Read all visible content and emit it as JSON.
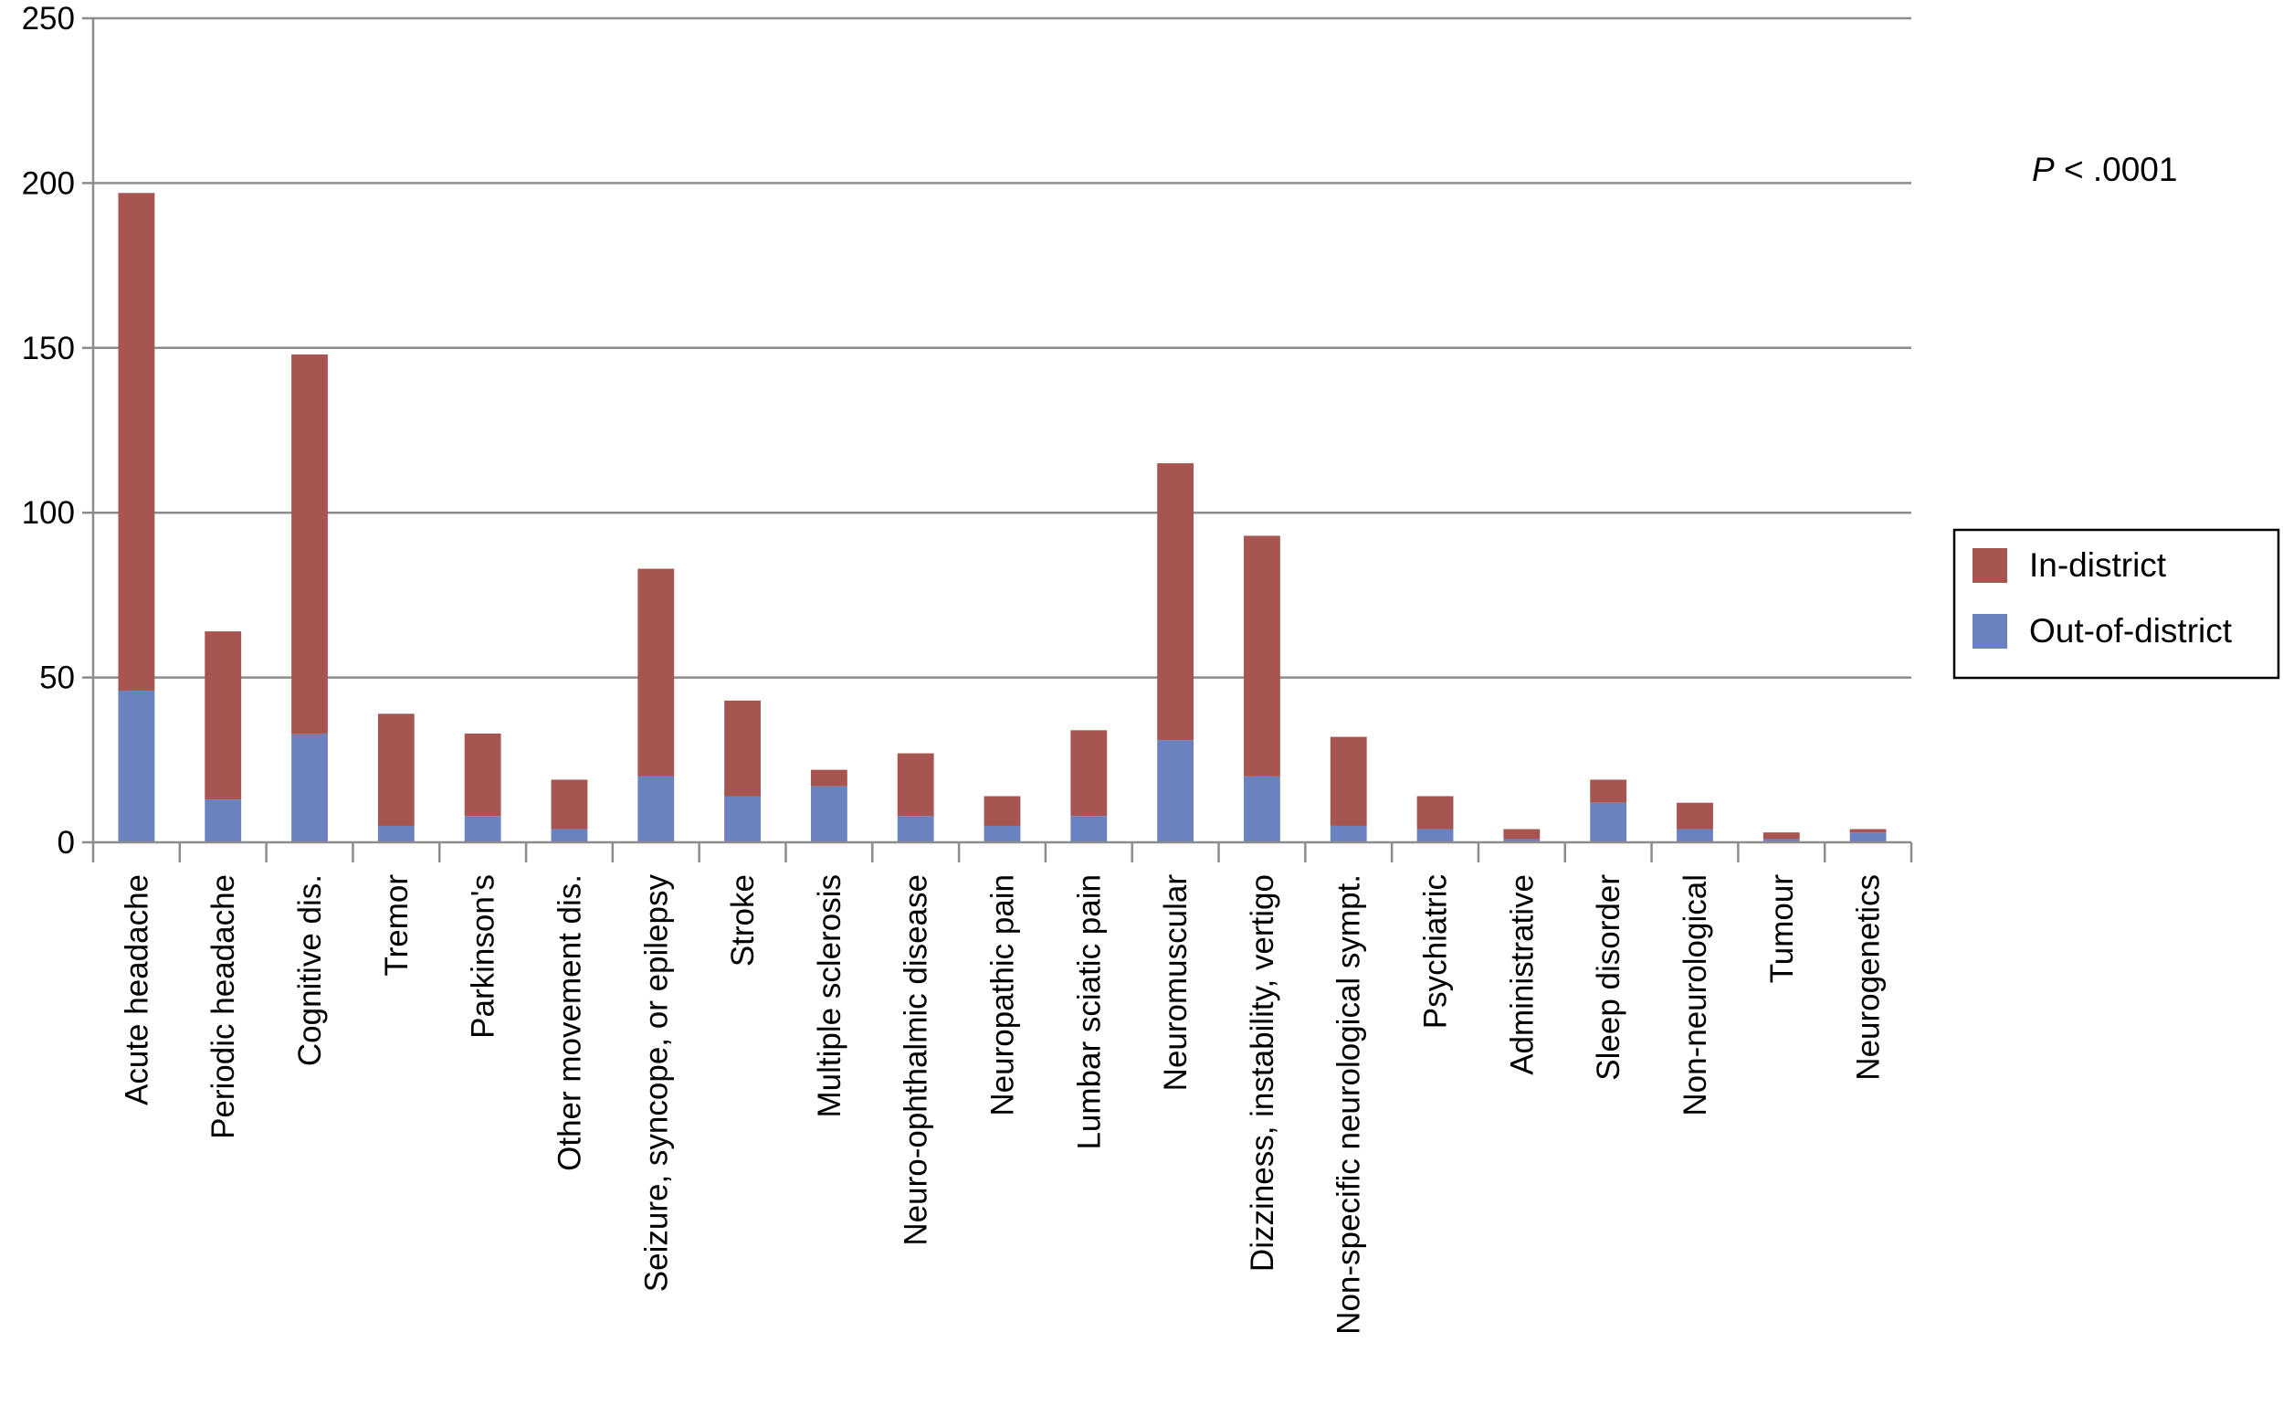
{
  "chart_data": {
    "type": "bar",
    "stacked": true,
    "categories": [
      "Acute headache",
      "Periodic headache",
      "Cognitive dis.",
      "Tremor",
      "Parkinson's",
      "Other movement dis.",
      "Seizure, syncope, or epilepsy",
      "Stroke",
      "Multiple sclerosis",
      "Neuro-ophthalmic disease",
      "Neuropathic pain",
      "Lumbar sciatic pain",
      "Neuromuscular",
      "Dizziness, instability, vertigo",
      "Non-specific neurological sympt.",
      "Psychiatric",
      "Administrative",
      "Sleep disorder",
      "Non-neurological",
      "Tumour",
      "Neurogenetics"
    ],
    "series": [
      {
        "name": "Out-of-district",
        "color": "#6a82c0",
        "values": [
          46,
          13,
          33,
          5,
          8,
          4,
          20,
          14,
          17,
          8,
          5,
          8,
          31,
          20,
          5,
          4,
          1,
          12,
          4,
          1,
          3
        ]
      },
      {
        "name": "In-district",
        "color": "#a65550",
        "values": [
          151,
          51,
          115,
          34,
          25,
          15,
          63,
          29,
          5,
          19,
          9,
          26,
          84,
          73,
          27,
          10,
          3,
          7,
          8,
          2,
          1
        ]
      }
    ],
    "y_ticks": [
      "0",
      "50",
      "100",
      "150",
      "200",
      "250"
    ],
    "ylim": [
      0,
      250
    ],
    "grid": true,
    "legend_position": "right",
    "legend_order": [
      "In-district",
      "Out-of-district"
    ],
    "annotation": {
      "italic": "P",
      "rest": " < .0001"
    },
    "title": "",
    "xlabel": "",
    "ylabel": ""
  }
}
